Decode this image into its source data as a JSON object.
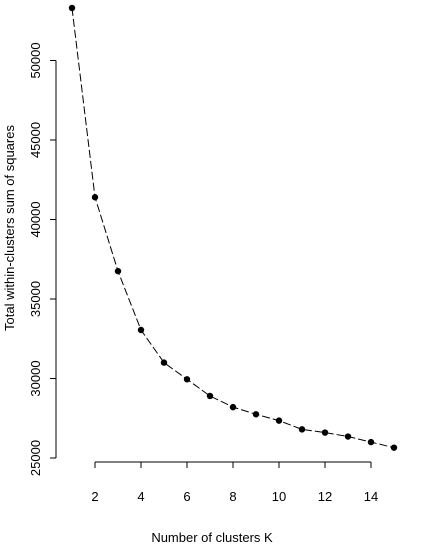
{
  "chart_data": {
    "type": "line",
    "title": "",
    "xlabel": "Number of clusters K",
    "ylabel": "Total within-clusters sum of squares",
    "x": [
      1,
      2,
      3,
      4,
      5,
      6,
      7,
      8,
      9,
      10,
      11,
      12,
      13,
      14,
      15
    ],
    "series": [
      {
        "values": [
          53300,
          41400,
          36750,
          33050,
          31000,
          29950,
          28900,
          28200,
          27750,
          27350,
          26800,
          26600,
          26350,
          26000,
          25650
        ]
      }
    ],
    "xticks": [
      2,
      4,
      6,
      8,
      10,
      12,
      14
    ],
    "xtick_labels": [
      "2",
      "4",
      "6",
      "8",
      "10",
      "12",
      "14"
    ],
    "yticks": [
      25000,
      30000,
      35000,
      40000,
      45000,
      50000
    ],
    "ytick_labels": [
      "25000",
      "30000",
      "35000",
      "40000",
      "45000",
      "50000"
    ],
    "xlim": [
      1,
      15
    ],
    "ylim": [
      25000,
      53300
    ],
    "grid": false,
    "legend": "none",
    "line_style": "dashed",
    "marker": "filled-circle",
    "color": "#000000"
  }
}
